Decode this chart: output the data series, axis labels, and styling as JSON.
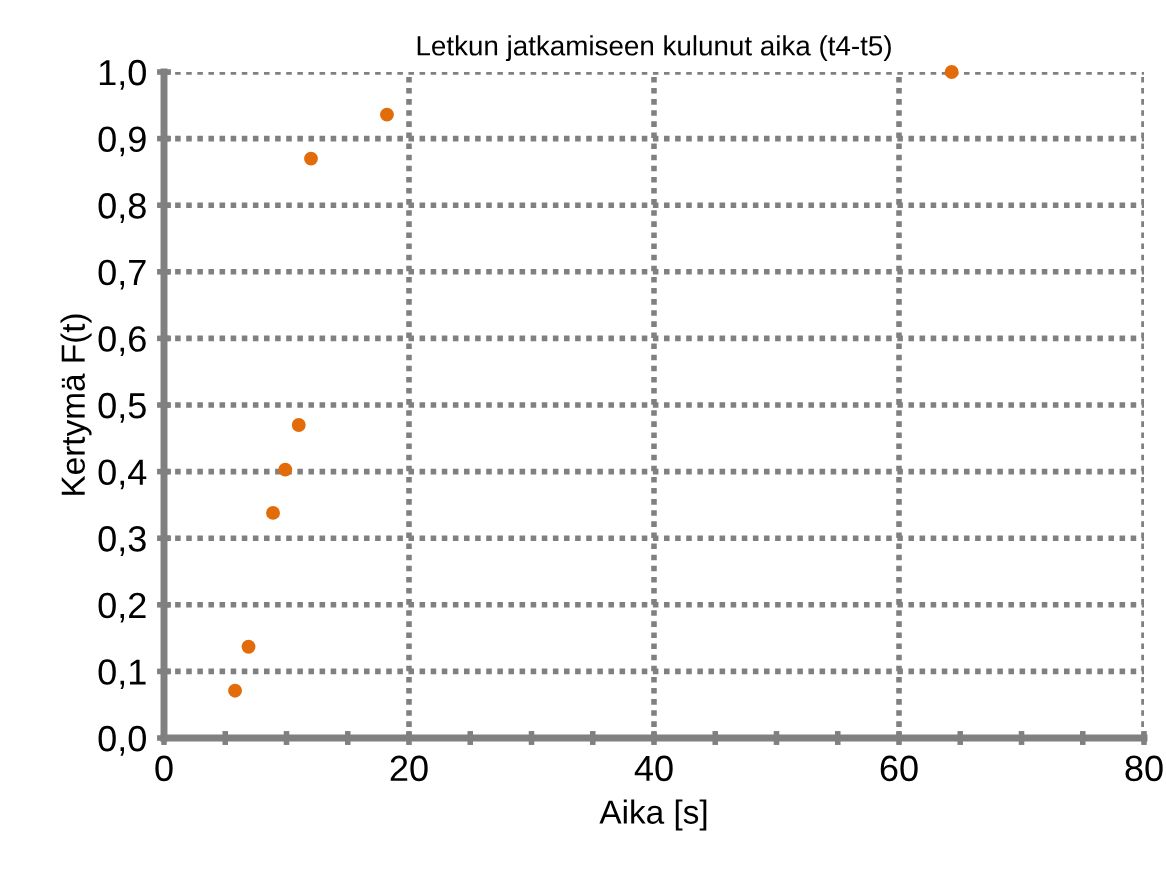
{
  "chart_data": {
    "type": "scatter",
    "title": "Letkun jatkamiseen kulunut aika (t4-t5)",
    "xlabel": "Aika [s]",
    "ylabel": "Kertymä F(t)",
    "x": [
      5.8,
      6.9,
      8.9,
      9.9,
      11.0,
      12.0,
      18.2,
      64.3
    ],
    "values": [
      0.071,
      0.137,
      0.338,
      0.403,
      0.47,
      0.87,
      0.936,
      1.0
    ],
    "color": "#e36c0a",
    "marker": "circle",
    "grid": true,
    "xlim": [
      0,
      80
    ],
    "ylim": [
      0,
      1.0
    ],
    "xticks": [
      0,
      {
        "value": 5,
        "label": null
      },
      {
        "value": 10,
        "label": null
      },
      {
        "value": 15,
        "label": null
      },
      20,
      {
        "value": 25,
        "label": null
      },
      {
        "value": 30,
        "label": null
      },
      {
        "value": 35,
        "label": null
      },
      40,
      {
        "value": 45,
        "label": null
      },
      {
        "value": 50,
        "label": null
      },
      {
        "value": 55,
        "label": null
      },
      60,
      {
        "value": 65,
        "label": null
      },
      {
        "value": 70,
        "label": null
      },
      {
        "value": 75,
        "label": null
      },
      80
    ],
    "yticks": [
      {
        "value": 0,
        "label": "0,0"
      },
      {
        "value": 0.1,
        "label": "0,1"
      },
      {
        "value": 0.2,
        "label": "0,2"
      },
      {
        "value": 0.3,
        "label": "0,3"
      },
      {
        "value": 0.4,
        "label": "0,4"
      },
      {
        "value": 0.5,
        "label": "0,5"
      },
      {
        "value": 0.6,
        "label": "0,6"
      },
      {
        "value": 0.7,
        "label": "0,7"
      },
      {
        "value": 0.8,
        "label": "0,8"
      },
      {
        "value": 0.9,
        "label": "0,9"
      },
      {
        "value": 1.0,
        "label": "1,0"
      }
    ]
  }
}
